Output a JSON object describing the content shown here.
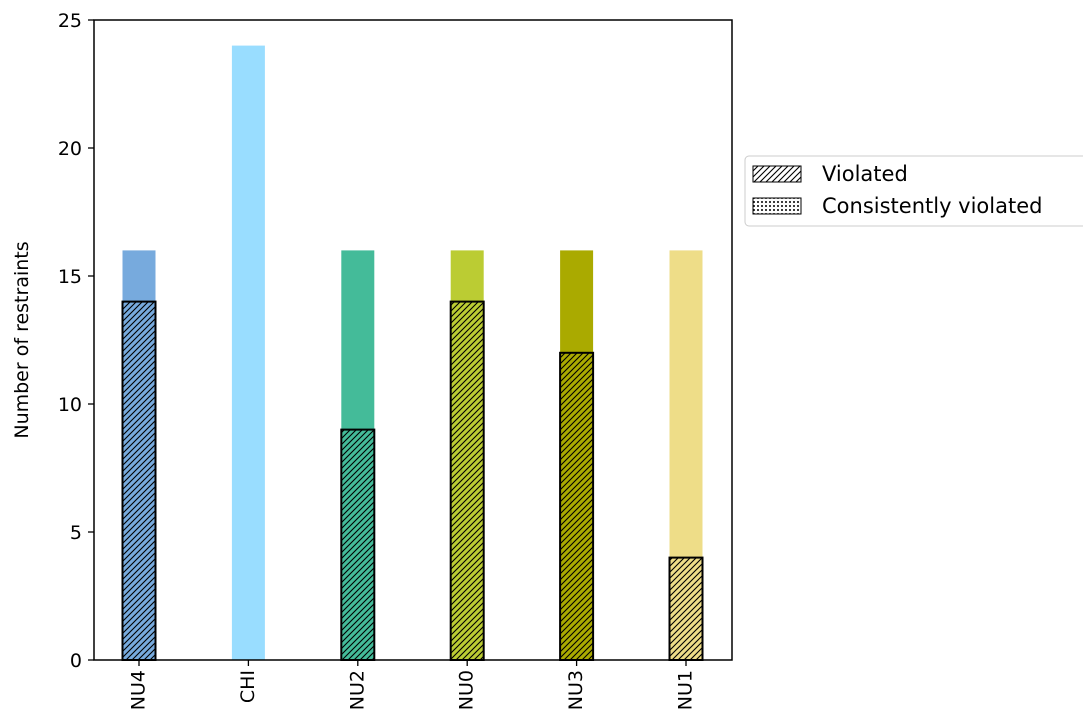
{
  "chart_data": {
    "type": "bar",
    "categories": [
      "NU4",
      "CHI",
      "NU2",
      "NU0",
      "NU3",
      "NU1"
    ],
    "series": [
      {
        "values": [
          16,
          24,
          16,
          16,
          16,
          16
        ]
      },
      {
        "name": "Violated",
        "values": [
          14,
          0,
          9,
          14,
          12,
          4
        ]
      },
      {
        "name": "Consistently violated",
        "values": [
          0,
          0,
          0,
          0,
          0,
          0
        ]
      }
    ],
    "colors": [
      "#77AADD",
      "#99DDFF",
      "#44BB99",
      "#BBCC33",
      "#AAAA00",
      "#EEDD88"
    ],
    "xlabel": "",
    "ylabel": "Number of restraints",
    "ylim": [
      0,
      25
    ],
    "yticks": [
      0,
      5,
      10,
      15,
      20,
      25
    ],
    "legend_position": "right, outside plot",
    "grid": false
  }
}
